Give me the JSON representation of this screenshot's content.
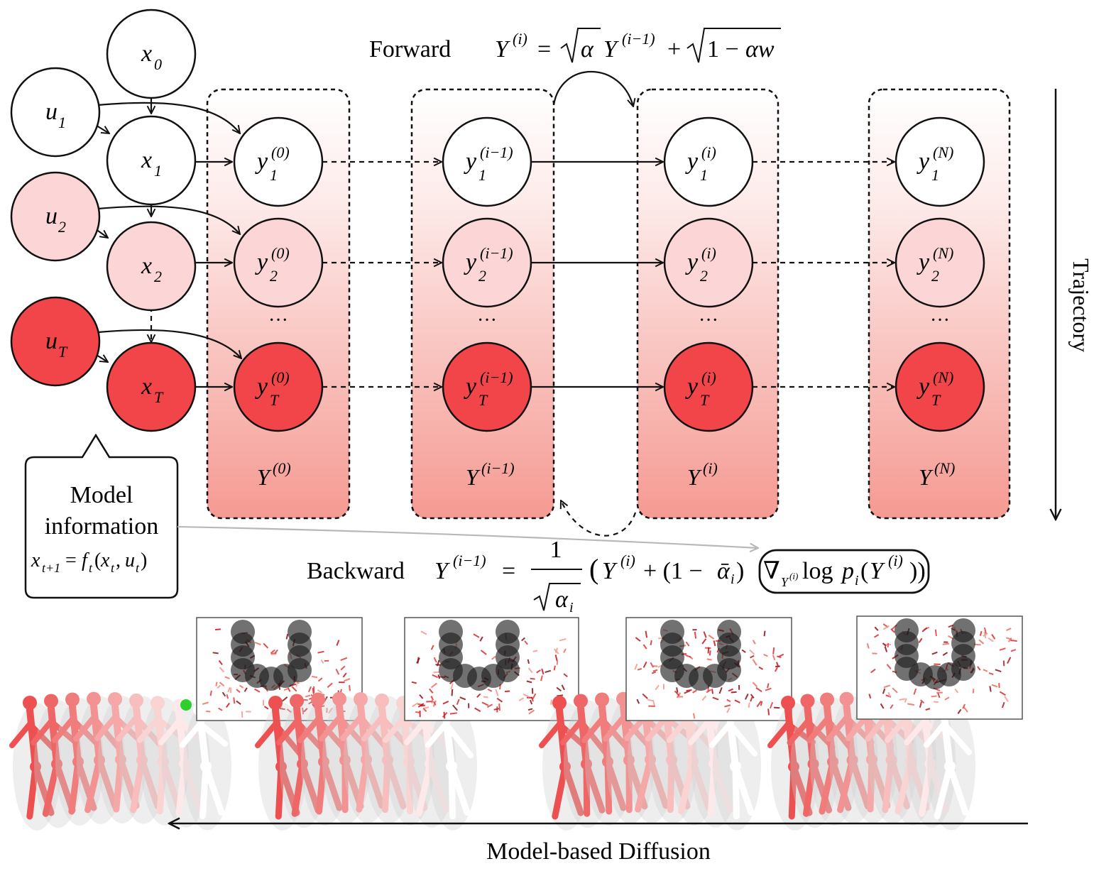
{
  "colors": {
    "white": "#ffffff",
    "pink_light": "#fcd6d6",
    "pink_mid": "#f7b5b5",
    "red": "#f24549",
    "stroke": "#111111",
    "group_bg_top": "#ffffff",
    "group_bg_bottom": "#f59a92",
    "model_arrow": "#b8b8b8"
  },
  "icons": {
    "trajectory_arrow": "down-arrow-icon",
    "diffusion_arrow": "left-arrow-icon"
  },
  "labels": {
    "forward_word": "Forward",
    "forward_eq": "Y(i) = √α Y(i−1) + √1 − αw",
    "backward_word": "Backward",
    "backward_eq": "Y(i−1) = 1/√ᾱi (Y(i) + (1 − ᾱi) ∇Y(i) log pi(Y(i)))",
    "trajectory": "Trajectory",
    "model_based_diffusion": "Model-based Diffusion",
    "callout_line1": "Model",
    "callout_line2": "information",
    "callout_eq": "xt+1 = ft(xt, ut)",
    "ellipsis": "···"
  },
  "inputs": {
    "x0": "x0",
    "u1": "u1",
    "x1": "x1",
    "u2": "u2",
    "x2": "x2",
    "uT": "uT",
    "xT": "xT"
  },
  "groups": [
    {
      "label": "Y(0)",
      "sup": "(0)"
    },
    {
      "label": "Y(i−1)",
      "sup": "(i−1)"
    },
    {
      "label": "Y(i)",
      "sup": "(i)"
    },
    {
      "label": "Y(N)",
      "sup": "(N)"
    }
  ],
  "rows": [
    {
      "sub": "1",
      "shade": "white"
    },
    {
      "sub": "2",
      "shade": "pink"
    },
    {
      "sub": "T",
      "shade": "red"
    }
  ],
  "illustrations": [
    "robot-trajectory-stage-0",
    "robot-trajectory-stage-1",
    "robot-trajectory-stage-2",
    "robot-trajectory-stage-3"
  ]
}
